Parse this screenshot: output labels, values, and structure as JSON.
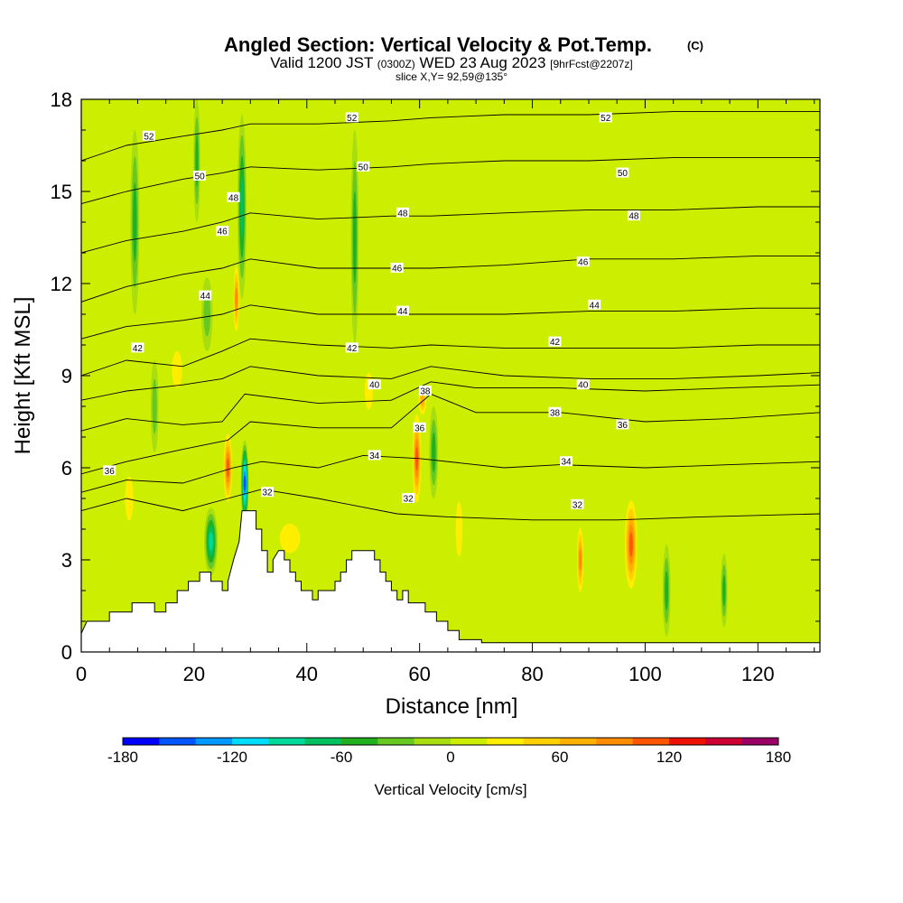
{
  "title": {
    "main": "Angled Section: Vertical Velocity & Pot.Temp.",
    "main_unit": "(C)",
    "valid_prefix": "Valid 1200 JST",
    "valid_utc": "(0300Z)",
    "valid_date": "WED 23 Aug 2023",
    "forecast": "[9hrFcst@2207z]",
    "slice": "slice X,Y= 92,59@135°"
  },
  "chart_data": {
    "type": "heatmap",
    "title": "Angled Section: Vertical Velocity & Pot.Temp. (C)",
    "xlabel": "Distance [nm]",
    "ylabel": "Height [Kft MSL]",
    "xlim": [
      0,
      131
    ],
    "ylim": [
      0,
      18
    ],
    "xticks": [
      "0",
      "20",
      "40",
      "60",
      "80",
      "100",
      "120"
    ],
    "yticks": [
      "0",
      "3",
      "6",
      "9",
      "12",
      "15",
      "18"
    ],
    "background_value": 15,
    "updrafts": [
      {
        "x": 26,
        "y": 6.0,
        "w": 0.9,
        "h": 1.3,
        "value": 120
      },
      {
        "x": 27.5,
        "y": 11.5,
        "w": 0.6,
        "h": 1.3,
        "value": 100
      },
      {
        "x": 59.5,
        "y": 6.3,
        "w": 0.9,
        "h": 1.7,
        "value": 130
      },
      {
        "x": 60.5,
        "y": 8.2,
        "w": 0.9,
        "h": 0.6,
        "value": 80
      },
      {
        "x": 88.5,
        "y": 3.0,
        "w": 0.7,
        "h": 1.3,
        "value": 100
      },
      {
        "x": 97.5,
        "y": 3.5,
        "w": 1.3,
        "h": 1.7,
        "value": 120
      },
      {
        "x": 37,
        "y": 3.7,
        "w": 3,
        "h": 0.8,
        "value": 55
      },
      {
        "x": 8.5,
        "y": 5.0,
        "w": 1.2,
        "h": 1.2,
        "value": 50
      },
      {
        "x": 17,
        "y": 9.2,
        "w": 1.5,
        "h": 1.0,
        "value": 50
      },
      {
        "x": 51,
        "y": 8.5,
        "w": 1.2,
        "h": 1.0,
        "value": 50
      },
      {
        "x": 67,
        "y": 4.0,
        "w": 1.0,
        "h": 1.5,
        "value": 45
      }
    ],
    "downdrafts": [
      {
        "x": 29,
        "y": 5.5,
        "w": 0.7,
        "h": 1.4,
        "value": -170
      },
      {
        "x": 23,
        "y": 3.6,
        "w": 1.2,
        "h": 1.1,
        "value": -110
      },
      {
        "x": 28.5,
        "y": 14.5,
        "w": 0.8,
        "h": 3.0,
        "value": -90
      },
      {
        "x": 9.5,
        "y": 14.0,
        "w": 0.8,
        "h": 3.0,
        "value": -70
      },
      {
        "x": 48.5,
        "y": 13.5,
        "w": 0.7,
        "h": 3.5,
        "value": -70
      },
      {
        "x": 20.5,
        "y": 16.0,
        "w": 0.6,
        "h": 2.0,
        "value": -60
      },
      {
        "x": 62.5,
        "y": 6.5,
        "w": 0.8,
        "h": 1.5,
        "value": -60
      },
      {
        "x": 103.8,
        "y": 2.0,
        "w": 0.7,
        "h": 1.5,
        "value": -75
      },
      {
        "x": 114,
        "y": 2.0,
        "w": 0.6,
        "h": 1.2,
        "value": -60
      },
      {
        "x": 22.3,
        "y": 11.0,
        "w": 1.0,
        "h": 1.2,
        "value": -55
      },
      {
        "x": 13.0,
        "y": 8.0,
        "w": 0.7,
        "h": 1.5,
        "value": -55
      }
    ],
    "terrain": [
      [
        0,
        0.6
      ],
      [
        1,
        1.0
      ],
      [
        5,
        1.0
      ],
      [
        5,
        1.3
      ],
      [
        9,
        1.3
      ],
      [
        9,
        1.6
      ],
      [
        13,
        1.6
      ],
      [
        13,
        1.3
      ],
      [
        15,
        1.3
      ],
      [
        15,
        1.6
      ],
      [
        17,
        1.6
      ],
      [
        17,
        2.0
      ],
      [
        19,
        2.0
      ],
      [
        19,
        2.3
      ],
      [
        21,
        2.3
      ],
      [
        21,
        2.6
      ],
      [
        23,
        2.6
      ],
      [
        23,
        2.3
      ],
      [
        25,
        2.3
      ],
      [
        25,
        2.0
      ],
      [
        26,
        2.0
      ],
      [
        26,
        2.3
      ],
      [
        27,
        3.0
      ],
      [
        28,
        3.6
      ],
      [
        28.5,
        4.6
      ],
      [
        31,
        4.6
      ],
      [
        31,
        4.0
      ],
      [
        32,
        4.0
      ],
      [
        32,
        3.3
      ],
      [
        33,
        3.3
      ],
      [
        33,
        2.6
      ],
      [
        34,
        2.6
      ],
      [
        34,
        3.0
      ],
      [
        35,
        3.3
      ],
      [
        36,
        3.3
      ],
      [
        36,
        3.0
      ],
      [
        37,
        3.0
      ],
      [
        37,
        2.6
      ],
      [
        38,
        2.6
      ],
      [
        38,
        2.3
      ],
      [
        39,
        2.3
      ],
      [
        39,
        2.0
      ],
      [
        41,
        2.0
      ],
      [
        41,
        1.7
      ],
      [
        42,
        1.7
      ],
      [
        42,
        2.0
      ],
      [
        45,
        2.0
      ],
      [
        45,
        2.3
      ],
      [
        46,
        2.3
      ],
      [
        46,
        2.6
      ],
      [
        47,
        2.6
      ],
      [
        47,
        3.0
      ],
      [
        48,
        3.0
      ],
      [
        48,
        3.3
      ],
      [
        52,
        3.3
      ],
      [
        52,
        3.0
      ],
      [
        53,
        3.0
      ],
      [
        53,
        2.6
      ],
      [
        54,
        2.6
      ],
      [
        54,
        2.3
      ],
      [
        55,
        2.3
      ],
      [
        55,
        2.0
      ],
      [
        56,
        2.0
      ],
      [
        56,
        1.7
      ],
      [
        57,
        1.7
      ],
      [
        57,
        2.0
      ],
      [
        58,
        2.0
      ],
      [
        58,
        1.6
      ],
      [
        61,
        1.6
      ],
      [
        61,
        1.3
      ],
      [
        63,
        1.3
      ],
      [
        63,
        1.0
      ],
      [
        65,
        1.0
      ],
      [
        65,
        0.7
      ],
      [
        67,
        0.7
      ],
      [
        67,
        0.4
      ],
      [
        71,
        0.4
      ],
      [
        71,
        0.3
      ],
      [
        131,
        0.3
      ]
    ],
    "isentropes": [
      {
        "pts": [
          [
            0,
            4.6
          ],
          [
            8,
            5.0
          ],
          [
            18,
            4.6
          ],
          [
            26,
            5.0
          ],
          [
            32,
            5.3
          ],
          [
            42,
            5.0
          ],
          [
            56,
            4.5
          ],
          [
            65,
            4.4
          ],
          [
            80,
            4.3
          ],
          [
            95,
            4.3
          ],
          [
            110,
            4.4
          ],
          [
            131,
            4.5
          ]
        ],
        "label": "32",
        "label_at": [
          [
            33,
            5.2
          ],
          [
            58,
            5.0
          ],
          [
            88,
            4.8
          ]
        ]
      },
      {
        "pts": [
          [
            0,
            5.2
          ],
          [
            8,
            5.6
          ],
          [
            18,
            5.5
          ],
          [
            27,
            6.0
          ],
          [
            32,
            6.2
          ],
          [
            42,
            6.0
          ],
          [
            50,
            6.4
          ],
          [
            60,
            6.3
          ],
          [
            75,
            6.0
          ],
          [
            85,
            6.1
          ],
          [
            100,
            6.0
          ],
          [
            115,
            6.1
          ],
          [
            131,
            6.2
          ]
        ],
        "label": "34",
        "label_at": [
          [
            52,
            6.4
          ],
          [
            86,
            6.2
          ]
        ]
      },
      {
        "pts": [
          [
            0,
            5.8
          ],
          [
            8,
            6.2
          ],
          [
            18,
            6.6
          ],
          [
            26,
            6.9
          ],
          [
            30,
            7.5
          ],
          [
            42,
            7.3
          ],
          [
            55,
            7.3
          ],
          [
            62,
            8.4
          ],
          [
            70,
            7.8
          ],
          [
            85,
            7.8
          ],
          [
            100,
            7.5
          ],
          [
            115,
            7.6
          ],
          [
            131,
            7.8
          ]
        ],
        "label": "36",
        "label_at": [
          [
            5,
            5.9
          ],
          [
            60,
            7.3
          ],
          [
            96,
            7.4
          ]
        ]
      },
      {
        "pts": [
          [
            0,
            7.2
          ],
          [
            8,
            7.6
          ],
          [
            18,
            7.4
          ],
          [
            25,
            7.5
          ],
          [
            29,
            8.4
          ],
          [
            42,
            8.1
          ],
          [
            55,
            8.2
          ],
          [
            62,
            8.8
          ],
          [
            70,
            8.6
          ],
          [
            85,
            8.6
          ],
          [
            100,
            8.5
          ],
          [
            115,
            8.6
          ],
          [
            131,
            8.7
          ]
        ],
        "label": "38",
        "label_at": [
          [
            61,
            8.5
          ],
          [
            84,
            7.8
          ]
        ]
      },
      {
        "pts": [
          [
            0,
            8.2
          ],
          [
            8,
            8.5
          ],
          [
            18,
            8.7
          ],
          [
            25,
            8.9
          ],
          [
            30,
            9.3
          ],
          [
            42,
            9.0
          ],
          [
            55,
            8.9
          ],
          [
            62,
            9.3
          ],
          [
            75,
            9.0
          ],
          [
            90,
            8.9
          ],
          [
            105,
            8.9
          ],
          [
            120,
            9.0
          ],
          [
            131,
            9.1
          ]
        ],
        "label": "40",
        "label_at": [
          [
            52,
            8.7
          ],
          [
            89,
            8.7
          ]
        ]
      },
      {
        "pts": [
          [
            0,
            9.0
          ],
          [
            8,
            9.5
          ],
          [
            18,
            9.3
          ],
          [
            25,
            9.8
          ],
          [
            30,
            10.2
          ],
          [
            42,
            10.0
          ],
          [
            55,
            9.9
          ],
          [
            62,
            10.0
          ],
          [
            75,
            9.9
          ],
          [
            90,
            9.9
          ],
          [
            105,
            9.9
          ],
          [
            120,
            10.0
          ],
          [
            131,
            10.0
          ]
        ],
        "label": "42",
        "label_at": [
          [
            10,
            9.9
          ],
          [
            48,
            9.9
          ],
          [
            84,
            10.1
          ]
        ]
      },
      {
        "pts": [
          [
            0,
            10.2
          ],
          [
            8,
            10.6
          ],
          [
            18,
            10.8
          ],
          [
            25,
            11.0
          ],
          [
            30,
            11.3
          ],
          [
            42,
            11.0
          ],
          [
            55,
            11.0
          ],
          [
            62,
            11.0
          ],
          [
            75,
            11.0
          ],
          [
            90,
            11.1
          ],
          [
            105,
            11.1
          ],
          [
            120,
            11.2
          ],
          [
            131,
            11.2
          ]
        ],
        "label": "44",
        "label_at": [
          [
            22,
            11.6
          ],
          [
            57,
            11.1
          ],
          [
            91,
            11.3
          ]
        ]
      },
      {
        "pts": [
          [
            0,
            11.4
          ],
          [
            8,
            11.9
          ],
          [
            18,
            12.3
          ],
          [
            25,
            12.5
          ],
          [
            30,
            12.8
          ],
          [
            42,
            12.5
          ],
          [
            55,
            12.5
          ],
          [
            62,
            12.5
          ],
          [
            75,
            12.6
          ],
          [
            90,
            12.8
          ],
          [
            105,
            12.8
          ],
          [
            120,
            12.9
          ],
          [
            131,
            12.9
          ]
        ],
        "label": "46",
        "label_at": [
          [
            25,
            13.7
          ],
          [
            56,
            12.5
          ],
          [
            89,
            12.7
          ]
        ]
      },
      {
        "pts": [
          [
            0,
            13.0
          ],
          [
            8,
            13.4
          ],
          [
            18,
            13.7
          ],
          [
            25,
            14.0
          ],
          [
            30,
            14.3
          ],
          [
            42,
            14.1
          ],
          [
            55,
            14.2
          ],
          [
            62,
            14.2
          ],
          [
            75,
            14.3
          ],
          [
            90,
            14.4
          ],
          [
            105,
            14.4
          ],
          [
            120,
            14.5
          ],
          [
            131,
            14.5
          ]
        ],
        "label": "48",
        "label_at": [
          [
            27,
            14.8
          ],
          [
            57,
            14.3
          ],
          [
            98,
            14.2
          ]
        ]
      },
      {
        "pts": [
          [
            0,
            14.6
          ],
          [
            8,
            15.0
          ],
          [
            18,
            15.4
          ],
          [
            25,
            15.6
          ],
          [
            30,
            15.8
          ],
          [
            42,
            15.7
          ],
          [
            55,
            15.8
          ],
          [
            62,
            15.9
          ],
          [
            75,
            16.0
          ],
          [
            90,
            16.0
          ],
          [
            105,
            16.1
          ],
          [
            120,
            16.1
          ],
          [
            131,
            16.1
          ]
        ],
        "label": "50",
        "label_at": [
          [
            21,
            15.5
          ],
          [
            50,
            15.8
          ],
          [
            96,
            15.6
          ]
        ]
      },
      {
        "pts": [
          [
            0,
            16.0
          ],
          [
            8,
            16.5
          ],
          [
            18,
            16.8
          ],
          [
            25,
            17.0
          ],
          [
            30,
            17.2
          ],
          [
            42,
            17.2
          ],
          [
            55,
            17.3
          ],
          [
            62,
            17.4
          ],
          [
            75,
            17.5
          ],
          [
            90,
            17.5
          ],
          [
            105,
            17.6
          ],
          [
            120,
            17.6
          ],
          [
            131,
            17.6
          ]
        ],
        "label": "52",
        "label_at": [
          [
            12,
            16.8
          ],
          [
            48,
            17.4
          ],
          [
            93,
            17.4
          ]
        ]
      }
    ],
    "colorbar": {
      "label": "Vertical Velocity [cm/s]",
      "min": -180,
      "max": 180,
      "step": 20,
      "ticks": [
        "-180",
        "-120",
        "-60",
        "0",
        "60",
        "120",
        "180"
      ],
      "colors": [
        "#0000ff",
        "#0055ff",
        "#0099ff",
        "#00ddff",
        "#00d99a",
        "#00c060",
        "#20b020",
        "#66c820",
        "#a8dd10",
        "#ccee00",
        "#ffee00",
        "#ffd000",
        "#ffb000",
        "#ff8c00",
        "#ff5500",
        "#ee1100",
        "#cc0033",
        "#990066"
      ]
    }
  }
}
